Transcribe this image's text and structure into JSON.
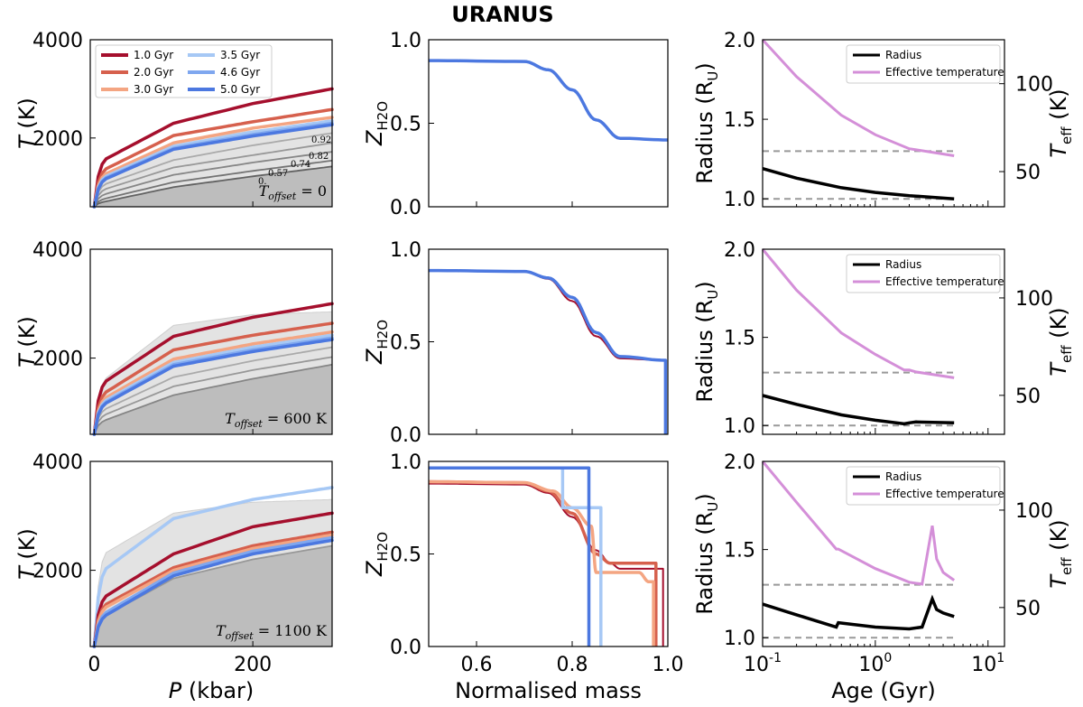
{
  "figure": {
    "title": "URANUS"
  },
  "colors": {
    "c1": "#a50f2d",
    "c2": "#d6604d",
    "c3": "#f4a582",
    "c35": "#a6c8f5",
    "c46": "#7fa7ef",
    "c5": "#4c78e0",
    "black": "#000000",
    "teff": "#d48fd8",
    "dash": "#999999",
    "shade": "#e3e3e3",
    "shadeDark": "#bdbdbd",
    "adiabat": "#555555"
  },
  "labels": {
    "row0_pt_ylabel": "T (K)",
    "row1_pt_ylabel": "T (K)",
    "row2_pt_ylabel": "T (K)",
    "pt_xlabel": "P (kbar)",
    "row0_z_ylabel": "Z",
    "row1_z_ylabel": "Z",
    "row2_z_ylabel": "Z",
    "z_sub": "H2O",
    "z_xlabel": "Normalised mass",
    "row0_r_ylabel": "Radius (R",
    "row1_r_ylabel": "Radius (R",
    "row2_r_ylabel": "Radius (R",
    "r_unit": "U",
    "r_close": ")",
    "row0_teff_ylabel": "T",
    "row1_teff_ylabel": "T",
    "row2_teff_ylabel": "T",
    "teff_sub": "eff",
    "teff_unit": " (K)",
    "age_xlabel": "Age (Gyr)",
    "row0_offset": "T",
    "offset_sub": "offset",
    "row0_offset_value": " = 0",
    "row1_offset_value": " = 600 K",
    "row2_offset_value": " = 1100 K",
    "row1_offset": "T",
    "row2_offset": "T",
    "adiabat_labels": [
      "0.92",
      "0.82",
      "0.74",
      "0.57",
      "0."
    ]
  },
  "chart_data": {
    "type": "line",
    "legend_ages": [
      {
        "name": "1.0 Gyr",
        "color": "c1"
      },
      {
        "name": "2.0 Gyr",
        "color": "c2"
      },
      {
        "name": "3.0 Gyr",
        "color": "c3"
      },
      {
        "name": "3.5 Gyr",
        "color": "c35"
      },
      {
        "name": "4.6 Gyr",
        "color": "c46"
      },
      {
        "name": "5.0 Gyr",
        "color": "c5"
      }
    ],
    "pt_axes": {
      "xlim": [
        -5,
        300
      ],
      "ylim": [
        600,
        4000
      ],
      "xticks": [
        0,
        200
      ],
      "yticks": [
        2000,
        4000
      ],
      "xlabel": "P (kbar)",
      "ylabel": "T (K)"
    },
    "z_axes": {
      "xlim": [
        0.5,
        1.0
      ],
      "ylim": [
        0.0,
        1.0
      ],
      "xticks": [
        0.6,
        0.8,
        1.0
      ],
      "yticks": [
        0.0,
        0.5,
        1.0
      ],
      "xlabel": "Normalised mass",
      "ylabel": "Z_H2O"
    },
    "r_axes": {
      "xscale": "log",
      "xlim": [
        0.1,
        14
      ],
      "ylim": [
        0.95,
        2.0
      ],
      "yticks": [
        1.0,
        1.5,
        2.0
      ],
      "teff_ylim": [
        30,
        125
      ],
      "teff_ticks": [
        50,
        100
      ],
      "xlabel": "Age (Gyr)",
      "ylabel": "Radius (R_U)",
      "y2label": "T_eff (K)",
      "legend": [
        "Radius",
        "Effective temperature"
      ],
      "dashed_radius_levels": [
        1.0,
        1.3
      ]
    },
    "rows": [
      {
        "offset": "T_offset = 0",
        "pt": {
          "series": [
            {
              "name": "1.0 Gyr",
              "T": [
                600,
                1550,
                2300,
                2700,
                3000
              ]
            },
            {
              "name": "2.0 Gyr",
              "T": [
                600,
                1350,
                2050,
                2330,
                2580
              ]
            },
            {
              "name": "3.0 Gyr",
              "T": [
                600,
                1250,
                1900,
                2200,
                2420
              ]
            },
            {
              "name": "3.5 Gyr",
              "T": [
                600,
                1200,
                1830,
                2120,
                2350
              ]
            },
            {
              "name": "4.6 Gyr",
              "T": [
                600,
                1170,
                1790,
                2070,
                2300
              ]
            },
            {
              "name": "5.0 Gyr",
              "T": [
                600,
                1150,
                1770,
                2040,
                2270
              ]
            }
          ],
          "P": [
            0,
            12,
            100,
            200,
            300
          ],
          "adiabats": [
            {
              "label": "0.92",
              "T": [
                600,
                1050,
                1550,
                1850,
                2100
              ]
            },
            {
              "label": "0.82",
              "T": [
                600,
                950,
                1400,
                1650,
                1900
              ]
            },
            {
              "label": "0.74",
              "T": [
                600,
                850,
                1250,
                1500,
                1720
              ]
            },
            {
              "label": "0.57",
              "T": [
                600,
                760,
                1100,
                1330,
                1540
              ]
            },
            {
              "label": "0.",
              "T": [
                600,
                700,
                1000,
                1220,
                1420
              ]
            }
          ],
          "shade_upper": [
            600,
            1200,
            1900,
            2150,
            2300
          ]
        },
        "z": {
          "series": [
            {
              "name": "5.0 Gyr",
              "x": [
                0.5,
                0.7,
                0.75,
                0.8,
                0.85,
                0.9,
                1.0
              ],
              "y": [
                0.875,
                0.87,
                0.82,
                0.7,
                0.52,
                0.41,
                0.4
              ]
            }
          ]
        },
        "r": {
          "age": [
            0.1,
            0.2,
            0.5,
            1,
            2,
            5
          ],
          "radius": [
            1.19,
            1.13,
            1.07,
            1.04,
            1.02,
            1.0
          ],
          "teff": [
            125,
            104,
            82,
            71,
            63,
            59
          ]
        }
      },
      {
        "offset": "T_offset = 600 K",
        "pt": {
          "series": [
            {
              "name": "1.0 Gyr",
              "T": [
                600,
                1550,
                2400,
                2750,
                3000
              ]
            },
            {
              "name": "2.0 Gyr",
              "T": [
                600,
                1350,
                2150,
                2420,
                2640
              ]
            },
            {
              "name": "3.0 Gyr",
              "T": [
                600,
                1250,
                1980,
                2260,
                2480
              ]
            },
            {
              "name": "3.5 Gyr",
              "T": [
                600,
                1200,
                1920,
                2200,
                2420
              ]
            },
            {
              "name": "4.6 Gyr",
              "T": [
                600,
                1170,
                1880,
                2150,
                2370
              ]
            },
            {
              "name": "5.0 Gyr",
              "T": [
                600,
                1150,
                1850,
                2120,
                2340
              ]
            }
          ],
          "P": [
            0,
            12,
            100,
            200,
            300
          ],
          "adiabats": [
            {
              "label": "",
              "T": [
                600,
                1050,
                1650,
                1950,
                2200
              ]
            },
            {
              "label": "",
              "T": [
                600,
                950,
                1480,
                1780,
                2020
              ]
            },
            {
              "label": "",
              "T": [
                600,
                850,
                1320,
                1620,
                1880
              ]
            }
          ],
          "shade_upper": [
            600,
            1600,
            2600,
            2800,
            2850
          ]
        },
        "z": {
          "series": [
            {
              "name": "1.0 Gyr",
              "x": [
                0.5,
                0.7,
                0.75,
                0.8,
                0.85,
                0.9,
                0.995,
                0.995
              ],
              "y": [
                0.885,
                0.88,
                0.84,
                0.72,
                0.53,
                0.41,
                0.4,
                0.0
              ]
            },
            {
              "name": "5.0 Gyr",
              "x": [
                0.5,
                0.7,
                0.75,
                0.8,
                0.85,
                0.9,
                0.995,
                0.995
              ],
              "y": [
                0.885,
                0.88,
                0.845,
                0.74,
                0.55,
                0.42,
                0.4,
                0.0
              ]
            }
          ]
        },
        "r": {
          "age": [
            0.1,
            0.2,
            0.5,
            1,
            1.8,
            2.0,
            2.3,
            5
          ],
          "radius": [
            1.17,
            1.12,
            1.06,
            1.03,
            1.01,
            1.015,
            1.02,
            1.015
          ],
          "teff": [
            125,
            104,
            82,
            71,
            63,
            63,
            62,
            59
          ]
        }
      },
      {
        "offset": "T_offset = 1100 K",
        "pt": {
          "series": [
            {
              "name": "3.5 Gyr",
              "T": [
                600,
                2000,
                2950,
                3300,
                3520
              ]
            },
            {
              "name": "1.0 Gyr",
              "T": [
                600,
                1500,
                2300,
                2800,
                3050
              ]
            },
            {
              "name": "2.0 Gyr",
              "T": [
                600,
                1350,
                2050,
                2450,
                2700
              ]
            },
            {
              "name": "3.0 Gyr",
              "T": [
                600,
                1300,
                2000,
                2400,
                2650
              ]
            },
            {
              "name": "4.6 Gyr",
              "T": [
                600,
                1200,
                1950,
                2350,
                2600
              ]
            },
            {
              "name": "5.0 Gyr",
              "T": [
                600,
                1150,
                1900,
                2300,
                2550
              ]
            }
          ],
          "P": [
            0,
            12,
            100,
            200,
            300
          ],
          "adiabats": [
            {
              "label": "",
              "T": [
                600,
                1300,
                2050,
                2350,
                2600
              ]
            },
            {
              "label": "",
              "T": [
                600,
                1150,
                1850,
                2200,
                2450
              ]
            }
          ],
          "shade_upper": [
            600,
            2300,
            3050,
            3250,
            3300
          ]
        },
        "z": {
          "series": [
            {
              "name": "1.0 Gyr",
              "x": [
                0.5,
                0.7,
                0.75,
                0.8,
                0.85,
                0.88,
                0.9,
                0.99,
                0.99
              ],
              "y": [
                0.88,
                0.875,
                0.83,
                0.7,
                0.52,
                0.45,
                0.42,
                0.42,
                0.0
              ]
            },
            {
              "name": "2.0 Gyr",
              "x": [
                0.5,
                0.7,
                0.75,
                0.8,
                0.85,
                0.88,
                0.975,
                0.975
              ],
              "y": [
                0.89,
                0.885,
                0.84,
                0.72,
                0.5,
                0.45,
                0.45,
                0.0
              ]
            },
            {
              "name": "3.0 Gyr",
              "x": [
                0.5,
                0.7,
                0.76,
                0.8,
                0.84,
                0.85,
                0.94,
                0.96,
                0.97,
                0.97
              ],
              "y": [
                0.89,
                0.885,
                0.84,
                0.75,
                0.65,
                0.4,
                0.4,
                0.35,
                0.35,
                0.0
              ]
            },
            {
              "name": "3.5 Gyr",
              "x": [
                0.5,
                0.78,
                0.78,
                0.86,
                0.86
              ],
              "y": [
                0.965,
                0.965,
                0.75,
                0.75,
                0.0
              ]
            },
            {
              "name": "5.0 Gyr",
              "x": [
                0.5,
                0.835,
                0.835
              ],
              "y": [
                0.965,
                0.965,
                0.0
              ]
            }
          ]
        },
        "r": {
          "age": [
            0.1,
            0.2,
            0.45,
            0.47,
            1,
            2,
            2.6,
            3.2,
            3.5,
            4,
            5
          ],
          "radius": [
            1.19,
            1.13,
            1.06,
            1.085,
            1.06,
            1.05,
            1.06,
            1.22,
            1.16,
            1.14,
            1.12
          ],
          "teff": [
            125,
            104,
            80,
            80,
            70,
            63,
            62,
            92,
            75,
            68,
            64
          ]
        }
      }
    ]
  }
}
